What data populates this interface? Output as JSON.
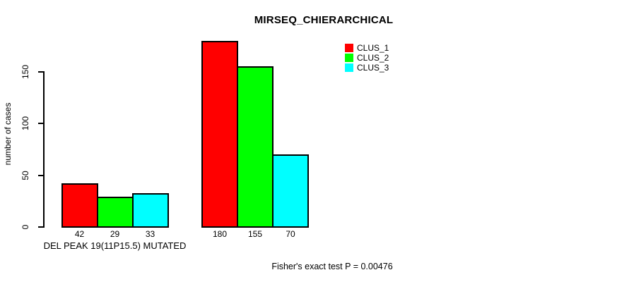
{
  "chart_data": {
    "type": "bar",
    "title": "MIRSEQ_CHIERARCHICAL",
    "ylabel": "number of cases",
    "xlabel": "",
    "ylim": [
      0,
      185
    ],
    "yticks": [
      0,
      50,
      100,
      150
    ],
    "grid": false,
    "legend_position": "top-right",
    "series": [
      {
        "name": "CLUS_1",
        "color": "#ff0000"
      },
      {
        "name": "CLUS_2",
        "color": "#00ff00"
      },
      {
        "name": "CLUS_3",
        "color": "#00ffff"
      }
    ],
    "groups": [
      {
        "label": "DEL PEAK 19(11P15.5) MUTATED",
        "values": [
          42,
          29,
          33
        ]
      },
      {
        "label": "",
        "values": [
          180,
          155,
          70
        ]
      }
    ],
    "bar_value_labels": [
      [
        "42",
        "29",
        "33"
      ],
      [
        "180",
        "155",
        "70"
      ]
    ],
    "annotation": "Fisher's exact test P = 0.00476",
    "axis_color": "#000000",
    "background_color": "#ffffff"
  }
}
